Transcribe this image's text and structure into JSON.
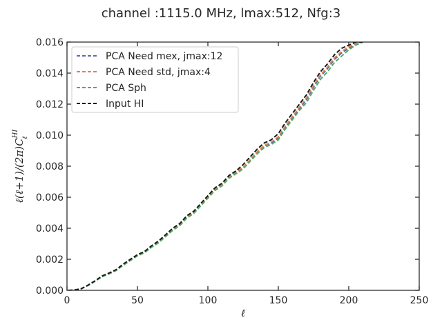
{
  "figure": {
    "title": "channel :1115.0 MHz, lmax:512, Nfg:3"
  },
  "chart_data": {
    "type": "line",
    "title": "channel :1115.0 MHz, lmax:512, Nfg:3",
    "xlabel": "ℓ",
    "ylabel": "ℓ(ℓ+1)/(2π)C",
    "ylabel_sub": "ℓ",
    "ylabel_sup": "HI",
    "xlim": [
      0,
      250
    ],
    "ylim": [
      0,
      0.016
    ],
    "xticks": [
      "0",
      "50",
      "100",
      "150",
      "200",
      "250"
    ],
    "yticks": [
      "0.000",
      "0.002",
      "0.004",
      "0.006",
      "0.008",
      "0.010",
      "0.012",
      "0.014",
      "0.016"
    ],
    "xtick_values": [
      0,
      50,
      100,
      150,
      200,
      250
    ],
    "ytick_values": [
      0,
      0.002,
      0.004,
      0.006,
      0.008,
      0.01,
      0.012,
      0.014,
      0.016
    ],
    "grid": false,
    "legend_position": "upper-left",
    "series": [
      {
        "name": "PCA Need mex, jmax:12",
        "color": "#4c72b0",
        "dash": "dashed",
        "x": [
          1,
          5,
          10,
          15,
          20,
          25,
          30,
          35,
          40,
          45,
          50,
          55,
          60,
          65,
          70,
          75,
          80,
          85,
          90,
          95,
          100,
          105,
          110,
          115,
          120,
          125,
          130,
          135,
          140,
          145,
          150,
          155,
          160,
          165,
          170,
          175,
          180,
          185,
          190,
          195,
          200,
          205,
          210
        ],
        "y": [
          0.0,
          2e-05,
          0.0001,
          0.00032,
          0.0006,
          0.0009,
          0.00108,
          0.0013,
          0.00165,
          0.00195,
          0.00225,
          0.00245,
          0.0028,
          0.0031,
          0.0035,
          0.0039,
          0.0042,
          0.0047,
          0.005,
          0.0055,
          0.006,
          0.0065,
          0.0068,
          0.0073,
          0.0076,
          0.0079,
          0.0084,
          0.0089,
          0.0093,
          0.0095,
          0.0098,
          0.0105,
          0.0111,
          0.0117,
          0.0123,
          0.0131,
          0.0138,
          0.0143,
          0.0149,
          0.0153,
          0.0156,
          0.0159,
          0.016
        ]
      },
      {
        "name": "PCA Need std, jmax:4",
        "color": "#dd8452",
        "dash": "dashed",
        "x": [
          1,
          5,
          10,
          15,
          20,
          25,
          30,
          35,
          40,
          45,
          50,
          55,
          60,
          65,
          70,
          75,
          80,
          85,
          90,
          95,
          100,
          105,
          110,
          115,
          120,
          125,
          130,
          135,
          140,
          145,
          150,
          155,
          160,
          165,
          170,
          175,
          180,
          185,
          190,
          195,
          200,
          205,
          210
        ],
        "y": [
          0.0,
          2e-05,
          0.0001,
          0.00033,
          0.00061,
          0.00091,
          0.00109,
          0.00131,
          0.00166,
          0.00196,
          0.00226,
          0.00246,
          0.00282,
          0.00312,
          0.00352,
          0.00392,
          0.00423,
          0.00472,
          0.00503,
          0.00553,
          0.00603,
          0.00652,
          0.00683,
          0.00733,
          0.00763,
          0.00793,
          0.00843,
          0.00893,
          0.00934,
          0.00955,
          0.0099,
          0.0106,
          0.0112,
          0.0118,
          0.0124,
          0.0132,
          0.0139,
          0.0144,
          0.015,
          0.0154,
          0.0157,
          0.0159,
          0.016
        ]
      },
      {
        "name": "PCA Sph",
        "color": "#55a868",
        "dash": "dashed",
        "x": [
          1,
          5,
          10,
          15,
          20,
          25,
          30,
          35,
          40,
          45,
          50,
          55,
          60,
          65,
          70,
          75,
          80,
          85,
          90,
          95,
          100,
          105,
          110,
          115,
          120,
          125,
          130,
          135,
          140,
          145,
          150,
          155,
          160,
          165,
          170,
          175,
          180,
          185,
          190,
          195,
          200,
          205,
          210
        ],
        "y": [
          0.0,
          2e-05,
          0.0001,
          0.00031,
          0.00058,
          0.00088,
          0.00106,
          0.00128,
          0.00162,
          0.00192,
          0.00222,
          0.00242,
          0.00277,
          0.00306,
          0.00346,
          0.00386,
          0.00416,
          0.00465,
          0.00495,
          0.00545,
          0.00594,
          0.00643,
          0.00673,
          0.00722,
          0.00752,
          0.00782,
          0.00831,
          0.0088,
          0.0092,
          0.0094,
          0.0097,
          0.0104,
          0.011,
          0.0116,
          0.0121,
          0.0129,
          0.0136,
          0.0141,
          0.0147,
          0.0151,
          0.0155,
          0.0158,
          0.016
        ]
      },
      {
        "name": "Input HI",
        "color": "#1a1a1a",
        "dash": "dashed",
        "x": [
          1,
          5,
          10,
          15,
          20,
          25,
          30,
          35,
          40,
          45,
          50,
          55,
          60,
          65,
          70,
          75,
          80,
          85,
          90,
          95,
          100,
          105,
          110,
          115,
          120,
          125,
          130,
          135,
          140,
          145,
          150,
          155,
          160,
          165,
          170,
          175,
          180,
          185,
          190,
          195,
          200,
          205,
          210
        ],
        "y": [
          0.0,
          2e-05,
          0.0001,
          0.00034,
          0.00062,
          0.00093,
          0.00112,
          0.00134,
          0.0017,
          0.002,
          0.0023,
          0.0025,
          0.00287,
          0.00318,
          0.00358,
          0.004,
          0.0043,
          0.0048,
          0.0051,
          0.0056,
          0.0061,
          0.0066,
          0.0069,
          0.0074,
          0.0077,
          0.0081,
          0.0086,
          0.0091,
          0.0095,
          0.0097,
          0.0101,
          0.0108,
          0.0114,
          0.012,
          0.0126,
          0.0134,
          0.0141,
          0.0146,
          0.0152,
          0.0156,
          0.0158,
          0.016,
          0.016
        ]
      }
    ]
  }
}
